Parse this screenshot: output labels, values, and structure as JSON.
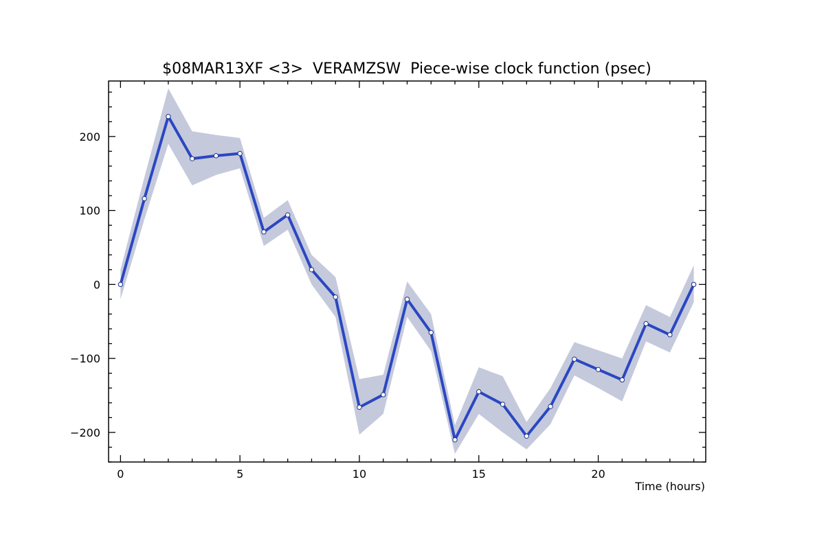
{
  "chart_data": {
    "type": "line",
    "title": "$08MAR13XF <3>  VERAMZSW  Piece-wise clock function (psec)",
    "xlabel": "Time (hours)",
    "ylabel": "",
    "xlim": [
      -0.5,
      24.5
    ],
    "ylim": [
      -240,
      275
    ],
    "x_ticks": [
      0,
      5,
      10,
      15,
      20
    ],
    "x_tick_labels": [
      "0",
      "5",
      "10",
      "15",
      "20"
    ],
    "y_ticks": [
      -200,
      -100,
      0,
      100,
      200
    ],
    "y_tick_labels": [
      "−200",
      "−100",
      "0",
      "100",
      "200"
    ],
    "grid": false,
    "colors": {
      "line": "#2a47c2",
      "band": "#c5c9dc",
      "marker_fill": "#ffffff"
    },
    "series": [
      {
        "x": [
          0,
          1,
          2,
          3,
          4,
          5,
          6,
          7,
          8,
          9,
          10,
          11,
          12,
          13,
          14,
          15,
          16,
          17,
          18,
          19,
          20,
          21,
          22,
          23,
          24
        ],
        "values": [
          0,
          116,
          227,
          170,
          174,
          177,
          71,
          94,
          20,
          -17,
          -166,
          -149,
          -20,
          -65,
          -210,
          -145,
          -162,
          -205,
          -165,
          -101,
          -115,
          -129,
          -53,
          -68,
          0
        ],
        "upper": [
          20,
          145,
          265,
          207,
          202,
          198,
          90,
          114,
          40,
          10,
          -128,
          -122,
          4,
          -40,
          -190,
          -112,
          -124,
          -186,
          -140,
          -78,
          -89,
          -100,
          -28,
          -44,
          26
        ],
        "lower": [
          -20,
          88,
          190,
          134,
          148,
          157,
          52,
          74,
          0,
          -44,
          -203,
          -175,
          -44,
          -90,
          -229,
          -175,
          -200,
          -223,
          -189,
          -123,
          -140,
          -158,
          -77,
          -92,
          -24
        ]
      }
    ]
  }
}
